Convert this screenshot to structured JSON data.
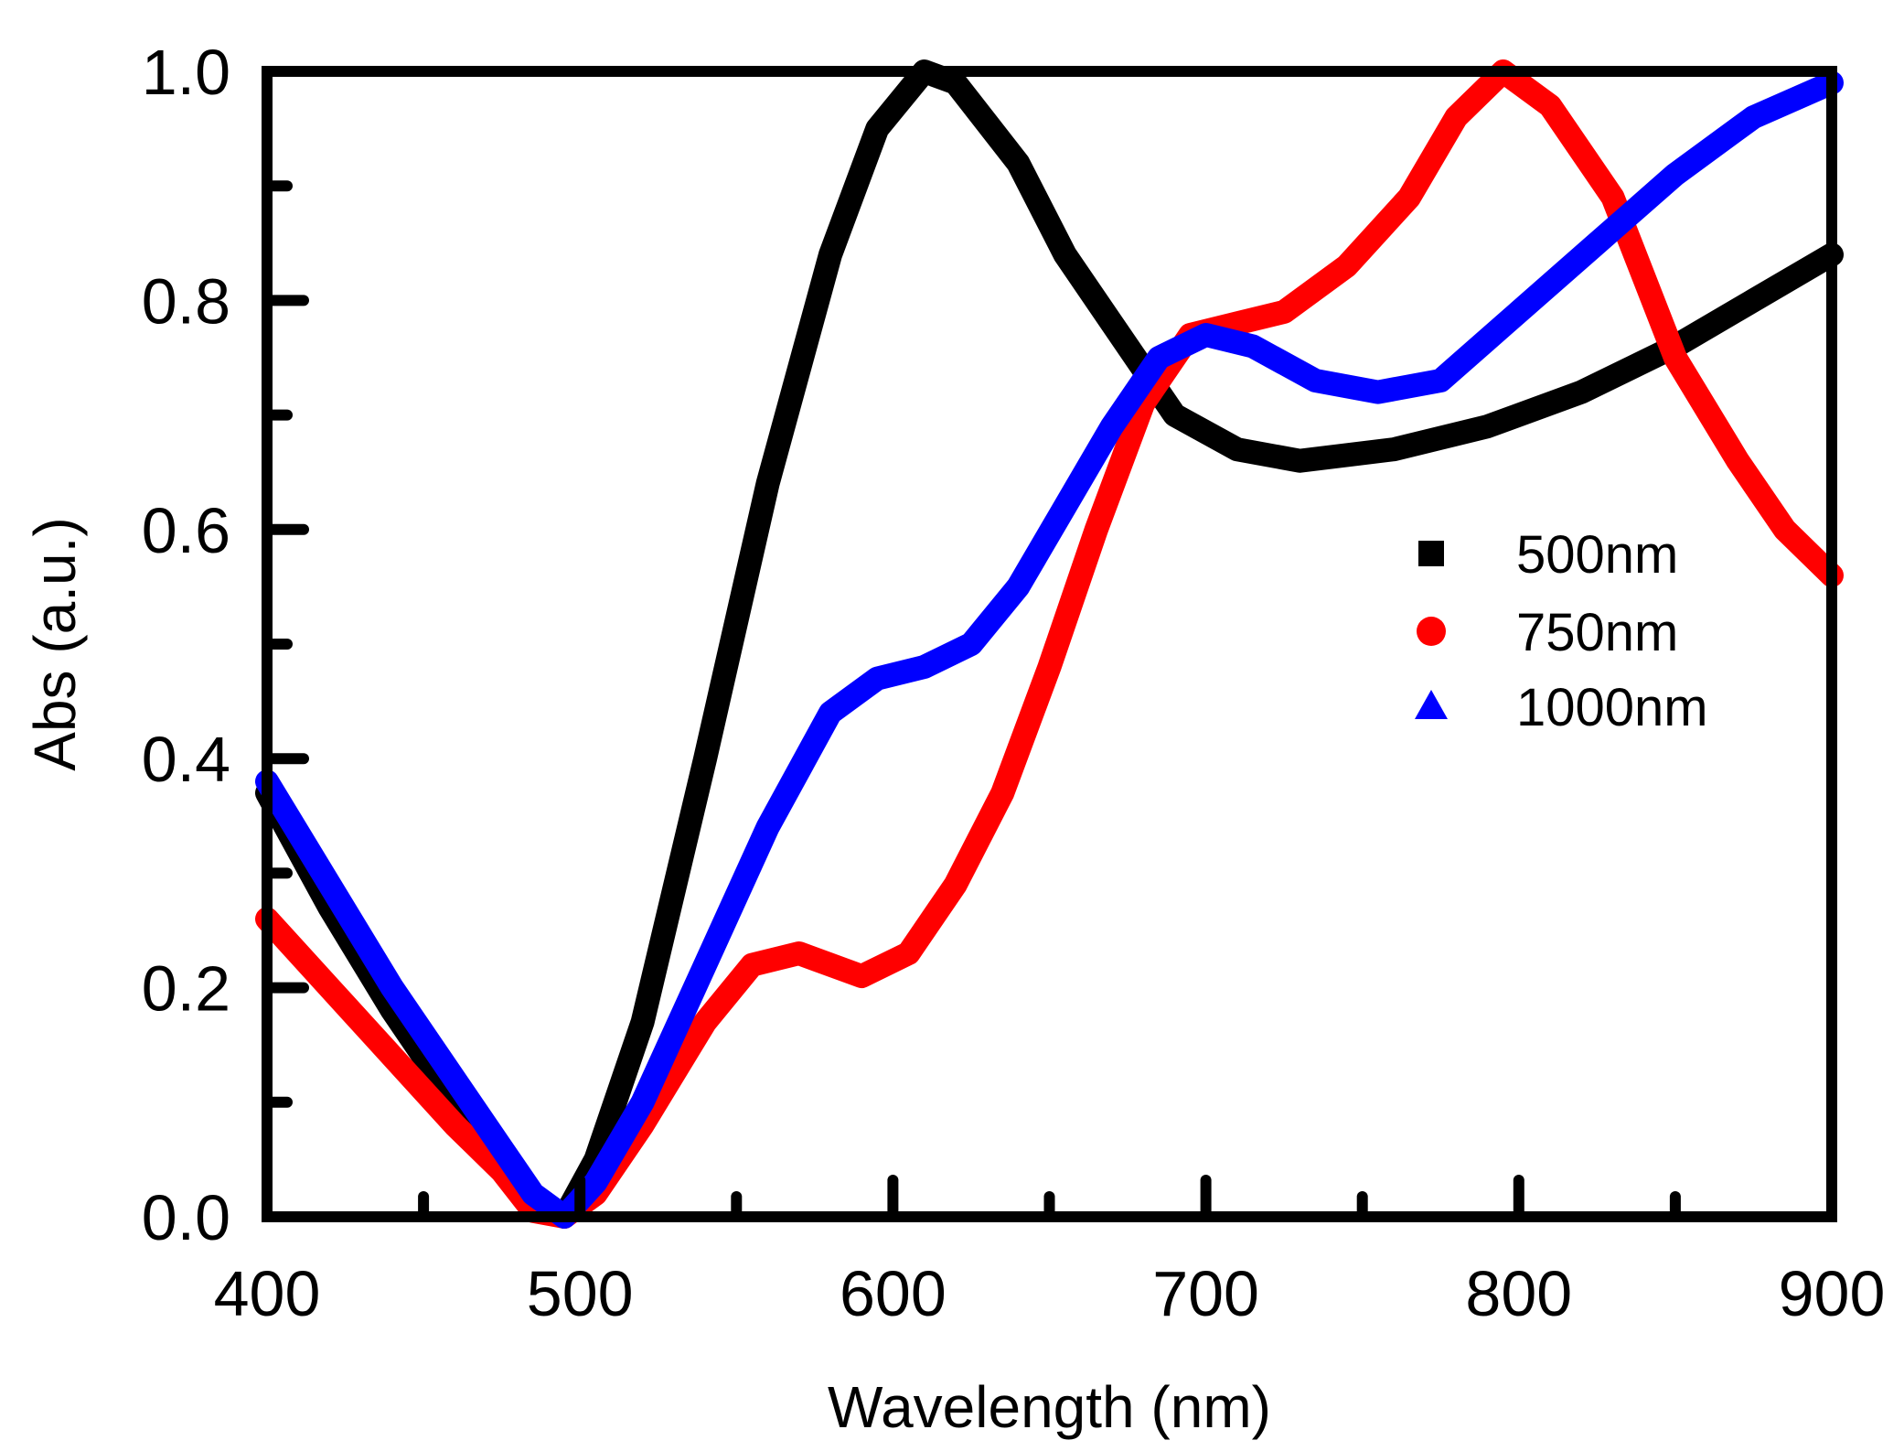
{
  "chart_data": {
    "type": "line",
    "title": "",
    "xlabel": "Wavelength (nm)",
    "ylabel": "Abs (a.u.)",
    "xlim": [
      400,
      900
    ],
    "ylim": [
      0.0,
      1.0
    ],
    "x_ticks": [
      "400",
      "500",
      "600",
      "700",
      "800",
      "900"
    ],
    "x_tick_values": [
      400,
      500,
      600,
      700,
      800,
      900
    ],
    "y_ticks": [
      "0.0",
      "0.2",
      "0.4",
      "0.6",
      "0.8",
      "1.0"
    ],
    "y_tick_values": [
      0.0,
      0.2,
      0.4,
      0.6,
      0.8,
      1.0
    ],
    "x_minor_step": 50,
    "y_minor_step": 0.1,
    "legend_position": "center-right",
    "series": [
      {
        "name": "500nm",
        "color": "#000000",
        "marker": "square",
        "points": [
          [
            400,
            0.37
          ],
          [
            420,
            0.27
          ],
          [
            440,
            0.18
          ],
          [
            460,
            0.1
          ],
          [
            475,
            0.05
          ],
          [
            485,
            0.01
          ],
          [
            495,
            0.0
          ],
          [
            505,
            0.05
          ],
          [
            520,
            0.17
          ],
          [
            540,
            0.4
          ],
          [
            560,
            0.64
          ],
          [
            580,
            0.84
          ],
          [
            595,
            0.95
          ],
          [
            610,
            1.0
          ],
          [
            620,
            0.99
          ],
          [
            640,
            0.92
          ],
          [
            655,
            0.84
          ],
          [
            670,
            0.78
          ],
          [
            690,
            0.7
          ],
          [
            710,
            0.67
          ],
          [
            730,
            0.66
          ],
          [
            760,
            0.67
          ],
          [
            790,
            0.69
          ],
          [
            820,
            0.72
          ],
          [
            850,
            0.76
          ],
          [
            875,
            0.8
          ],
          [
            900,
            0.84
          ]
        ]
      },
      {
        "name": "750nm",
        "color": "#ff0000",
        "marker": "circle",
        "points": [
          [
            400,
            0.26
          ],
          [
            420,
            0.2
          ],
          [
            440,
            0.14
          ],
          [
            460,
            0.08
          ],
          [
            475,
            0.04
          ],
          [
            485,
            0.005
          ],
          [
            495,
            0.0
          ],
          [
            505,
            0.02
          ],
          [
            520,
            0.08
          ],
          [
            540,
            0.17
          ],
          [
            555,
            0.22
          ],
          [
            570,
            0.23
          ],
          [
            590,
            0.21
          ],
          [
            605,
            0.23
          ],
          [
            620,
            0.29
          ],
          [
            635,
            0.37
          ],
          [
            650,
            0.48
          ],
          [
            665,
            0.6
          ],
          [
            680,
            0.71
          ],
          [
            695,
            0.77
          ],
          [
            710,
            0.78
          ],
          [
            725,
            0.79
          ],
          [
            745,
            0.83
          ],
          [
            765,
            0.89
          ],
          [
            780,
            0.96
          ],
          [
            795,
            1.0
          ],
          [
            810,
            0.97
          ],
          [
            830,
            0.89
          ],
          [
            850,
            0.75
          ],
          [
            870,
            0.66
          ],
          [
            885,
            0.6
          ],
          [
            900,
            0.56
          ]
        ]
      },
      {
        "name": "1000nm",
        "color": "#0000ff",
        "marker": "triangle",
        "points": [
          [
            400,
            0.38
          ],
          [
            420,
            0.29
          ],
          [
            440,
            0.2
          ],
          [
            460,
            0.12
          ],
          [
            475,
            0.06
          ],
          [
            485,
            0.02
          ],
          [
            495,
            0.0
          ],
          [
            505,
            0.03
          ],
          [
            520,
            0.1
          ],
          [
            540,
            0.22
          ],
          [
            560,
            0.34
          ],
          [
            580,
            0.44
          ],
          [
            595,
            0.47
          ],
          [
            610,
            0.48
          ],
          [
            625,
            0.5
          ],
          [
            640,
            0.55
          ],
          [
            655,
            0.62
          ],
          [
            670,
            0.69
          ],
          [
            685,
            0.75
          ],
          [
            700,
            0.77
          ],
          [
            715,
            0.76
          ],
          [
            735,
            0.73
          ],
          [
            755,
            0.72
          ],
          [
            775,
            0.73
          ],
          [
            800,
            0.79
          ],
          [
            825,
            0.85
          ],
          [
            850,
            0.91
          ],
          [
            875,
            0.96
          ],
          [
            900,
            0.99
          ]
        ]
      }
    ]
  }
}
